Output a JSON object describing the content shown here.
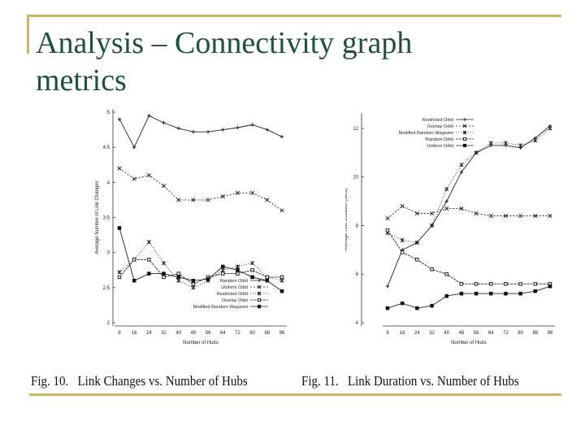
{
  "slide": {
    "title_line1": "Analysis – Connectivity graph",
    "title_line2": "metrics",
    "caption_left": "Fig. 10.   Link Changes vs. Number of Hubs",
    "caption_right": "Fig. 11.   Link Duration vs. Number of Hubs",
    "accent_color": "#cbb56a",
    "title_color": "#1f4f43"
  },
  "chart_data": [
    {
      "type": "line",
      "title": "",
      "xlabel": "Number of Hubs",
      "ylabel": "Average Number of Link Changes",
      "x": [
        8,
        16,
        24,
        32,
        40,
        48,
        56,
        64,
        72,
        80,
        88,
        96
      ],
      "x_ticks": [
        8,
        16,
        24,
        32,
        40,
        48,
        56,
        64,
        72,
        80,
        88,
        96
      ],
      "y_ticks": [
        2,
        2.5,
        3,
        3.5,
        4,
        4.5,
        5
      ],
      "ylim": [
        2,
        5
      ],
      "legend_position": "bottom-right",
      "series": [
        {
          "name": "Random Orbit",
          "marker": "plus",
          "values": [
            4.9,
            4.5,
            4.95,
            4.85,
            4.77,
            4.72,
            4.72,
            4.75,
            4.78,
            4.82,
            4.75,
            4.65
          ]
        },
        {
          "name": "Uniform Orbit",
          "marker": "cross",
          "values": [
            4.2,
            4.05,
            4.1,
            3.95,
            3.75,
            3.75,
            3.75,
            3.8,
            3.85,
            3.85,
            3.75,
            3.6
          ]
        },
        {
          "name": "Restricted Orbit",
          "marker": "star",
          "values": [
            2.72,
            2.9,
            3.15,
            2.85,
            2.6,
            2.5,
            2.6,
            2.75,
            2.8,
            2.85,
            2.65,
            2.6
          ]
        },
        {
          "name": "Overlay Orbit",
          "marker": "square",
          "values": [
            2.65,
            2.9,
            2.9,
            2.65,
            2.7,
            2.55,
            2.65,
            2.7,
            2.7,
            2.75,
            2.65,
            2.65
          ]
        },
        {
          "name": "Modified Random Waypoint",
          "marker": "filled-square",
          "values": [
            3.35,
            2.6,
            2.7,
            2.7,
            2.65,
            2.6,
            2.62,
            2.8,
            2.75,
            2.65,
            2.6,
            2.45
          ]
        }
      ]
    },
    {
      "type": "line",
      "title": "",
      "xlabel": "Number of Hubs",
      "ylabel": "Average Link Duration (secs)",
      "x": [
        8,
        16,
        24,
        32,
        40,
        48,
        56,
        64,
        72,
        80,
        88,
        96
      ],
      "x_ticks": [
        8,
        16,
        24,
        32,
        40,
        48,
        56,
        64,
        72,
        80,
        88,
        96
      ],
      "y_ticks": [
        4,
        6,
        8,
        10,
        12
      ],
      "ylim": [
        4,
        12.5
      ],
      "legend_position": "top-right",
      "series": [
        {
          "name": "Restricted Orbit",
          "marker": "plus",
          "values": [
            5.5,
            7.0,
            7.3,
            8.0,
            9.0,
            10.2,
            11.0,
            11.3,
            11.3,
            11.2,
            11.6,
            12.1
          ]
        },
        {
          "name": "Overlay Orbit",
          "marker": "cross",
          "values": [
            8.3,
            8.8,
            8.5,
            8.5,
            8.7,
            8.7,
            8.5,
            8.4,
            8.4,
            8.4,
            8.4,
            8.4
          ]
        },
        {
          "name": "Modified Random Waypoint",
          "marker": "star",
          "values": [
            7.7,
            7.4,
            7.3,
            8.0,
            9.5,
            10.5,
            11.0,
            11.4,
            11.4,
            11.3,
            11.5,
            12.0
          ]
        },
        {
          "name": "Random Orbit",
          "marker": "square",
          "values": [
            7.8,
            6.9,
            6.6,
            6.2,
            6.0,
            5.6,
            5.6,
            5.6,
            5.6,
            5.6,
            5.6,
            5.6
          ]
        },
        {
          "name": "Uniform Orbit",
          "marker": "filled-square",
          "values": [
            4.6,
            4.8,
            4.6,
            4.7,
            5.1,
            5.2,
            5.2,
            5.2,
            5.2,
            5.2,
            5.3,
            5.5
          ]
        }
      ]
    }
  ]
}
